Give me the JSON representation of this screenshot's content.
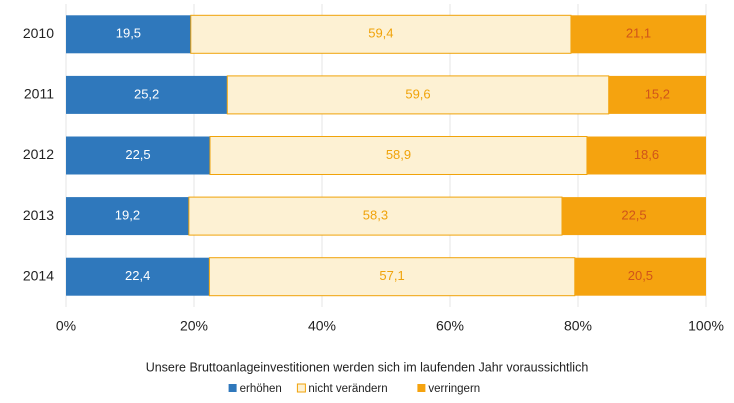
{
  "chart_data": {
    "type": "stacked_barh",
    "xlabel": "Unsere Bruttoanlageinvestitionen werden sich im laufenden Jahr voraussichtlich",
    "categories": [
      "2010",
      "2011",
      "2012",
      "2013",
      "2014"
    ],
    "series": [
      {
        "name": "erhöhen",
        "color": "#2f78bc",
        "label_color": "#ffffff",
        "values": [
          19.5,
          25.2,
          22.5,
          19.2,
          22.4
        ],
        "value_labels": [
          "19,5",
          "25,2",
          "22,5",
          "19,2",
          "22,4"
        ]
      },
      {
        "name": "nicht verändern",
        "color": "#fdf1d3",
        "label_color": "#f0a30a",
        "values": [
          59.4,
          59.6,
          58.9,
          58.3,
          57.1
        ],
        "value_labels": [
          "59,4",
          "59,6",
          "58,9",
          "58,3",
          "57,1"
        ]
      },
      {
        "name": "verringern",
        "color": "#f5a30f",
        "label_color": "#d0541a",
        "values": [
          21.1,
          15.2,
          18.6,
          22.5,
          20.5
        ],
        "value_labels": [
          "21,1",
          "15,2",
          "18,6",
          "22,5",
          "20,5"
        ]
      }
    ],
    "xlim": [
      0,
      100
    ],
    "xticks": [
      {
        "value": 0,
        "label": "0%"
      },
      {
        "value": 20,
        "label": "20%"
      },
      {
        "value": 40,
        "label": "40%"
      },
      {
        "value": 60,
        "label": "60%"
      },
      {
        "value": 80,
        "label": "80%"
      },
      {
        "value": 100,
        "label": "100%"
      }
    ],
    "grid": true
  }
}
